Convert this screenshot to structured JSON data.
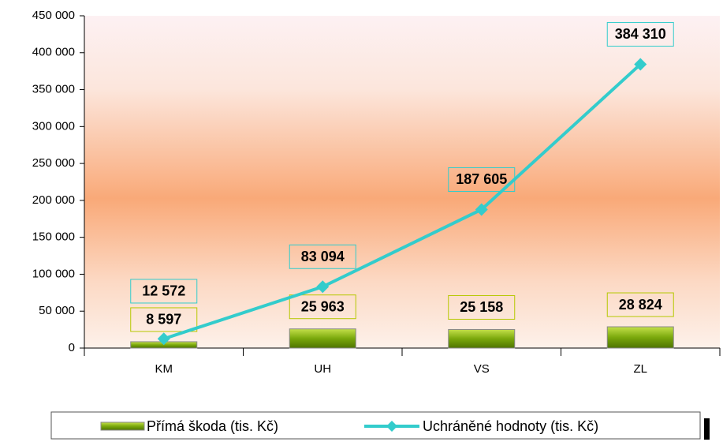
{
  "chart_data": {
    "type": "combo",
    "categories": [
      "KM",
      "UH",
      "VS",
      "ZL"
    ],
    "series": [
      {
        "name": "Přímá škoda (tis. Kč)",
        "type": "bar",
        "color": "#7aa80c",
        "values": [
          8597,
          25963,
          25158,
          28824
        ],
        "value_labels": [
          "8 597",
          "25 963",
          "25 158",
          "28 824"
        ]
      },
      {
        "name": "Uchráněné hodnoty (tis. Kč)",
        "type": "line",
        "color": "#33cccc",
        "values": [
          12572,
          83094,
          187605,
          384310
        ],
        "value_labels": [
          "12 572",
          "83 094",
          "187 605",
          "384 310"
        ]
      }
    ],
    "ylim": [
      0,
      450000
    ],
    "yticks": [
      0,
      {
        "value": 50000,
        "label": "50 000"
      },
      {
        "value": 100000,
        "label": "100 000"
      },
      {
        "value": 150000,
        "label": "150 000"
      },
      {
        "value": 200000,
        "label": "200 000"
      },
      {
        "value": 250000,
        "label": "250 000"
      },
      {
        "value": 300000,
        "label": "300 000"
      },
      {
        "value": 350000,
        "label": "350 000"
      },
      {
        "value": 400000,
        "label": "400 000"
      },
      {
        "value": 450000,
        "label": "450 000"
      }
    ],
    "legend": "bottom"
  }
}
